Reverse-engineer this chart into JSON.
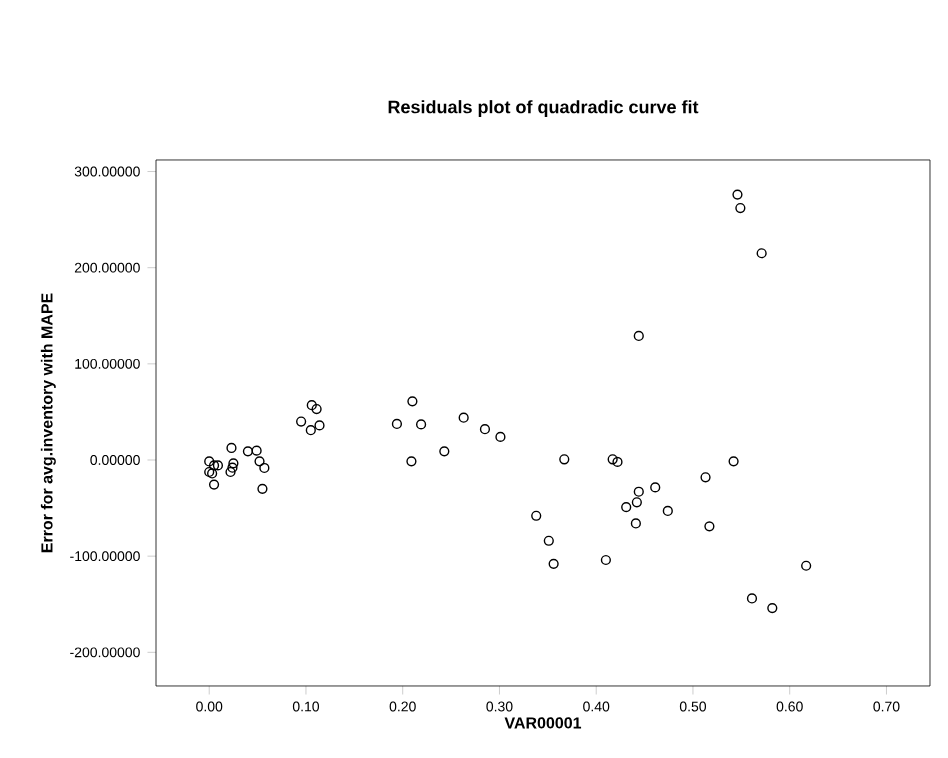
{
  "chart_data": {
    "type": "scatter",
    "title": "Residuals plot of quadradic curve fit",
    "xlabel": "VAR00001",
    "ylabel": "Error for avg.inventory with MAPE",
    "marker": "circle",
    "color": "#000000",
    "grid": false,
    "xlim": [
      -0.055,
      0.745
    ],
    "ylim": [
      -235,
      312
    ],
    "xticks": [
      {
        "value": 0,
        "label": "0.00"
      },
      {
        "value": 0.1,
        "label": "0.10"
      },
      {
        "value": 0.2,
        "label": "0.20"
      },
      {
        "value": 0.3,
        "label": "0.30"
      },
      {
        "value": 0.4,
        "label": "0.40"
      },
      {
        "value": 0.5,
        "label": "0.50"
      },
      {
        "value": 0.6,
        "label": "0.60"
      },
      {
        "value": 0.7,
        "label": "0.70"
      }
    ],
    "yticks": [
      {
        "value": -200,
        "label": "-200.00000"
      },
      {
        "value": -100,
        "label": "-100.00000"
      },
      {
        "value": 0,
        "label": "0.00000"
      },
      {
        "value": 100,
        "label": "100.00000"
      },
      {
        "value": 200,
        "label": "200.00000"
      },
      {
        "value": 300,
        "label": "300.00000"
      }
    ],
    "x": [
      0.0,
      0.0,
      0.005,
      0.005,
      0.003,
      0.009,
      0.023,
      0.025,
      0.022,
      0.024,
      0.04,
      0.049,
      0.052,
      0.057,
      0.055,
      0.095,
      0.106,
      0.111,
      0.105,
      0.114,
      0.194,
      0.21,
      0.219,
      0.209,
      0.243,
      0.263,
      0.285,
      0.301,
      0.546,
      0.549,
      0.571,
      0.444,
      0.367,
      0.417,
      0.422,
      0.542,
      0.338,
      0.351,
      0.356,
      0.41,
      0.444,
      0.461,
      0.431,
      0.442,
      0.474,
      0.441,
      0.513,
      0.517,
      0.617,
      0.561,
      0.582
    ],
    "values": [
      -1.5,
      -12.5,
      -5.6,
      -25.6,
      -14,
      -5.6,
      12.5,
      -3.5,
      -12.5,
      -8,
      9,
      9.7,
      -1.4,
      -8.3,
      -30,
      40,
      57,
      53,
      31,
      36,
      37.5,
      61,
      37,
      -1.4,
      9,
      44,
      32,
      24,
      276,
      262,
      215,
      129,
      0.7,
      0.7,
      -2,
      -1.4,
      -58,
      -84,
      -108,
      -104,
      -33,
      -28.5,
      -49,
      -44,
      -53,
      -66,
      -18,
      -69,
      -110,
      -144,
      -154
    ]
  }
}
